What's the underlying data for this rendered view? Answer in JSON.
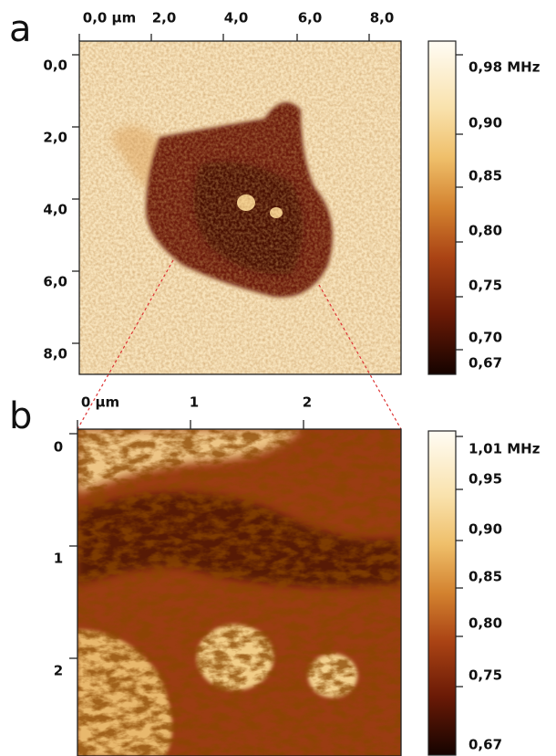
{
  "panel_a": {
    "label": "a",
    "x_ticks": [
      "0,0 µm",
      "2,0",
      "4,0",
      "6,0",
      "8,0"
    ],
    "y_ticks": [
      "0,0",
      "2,0",
      "4,0",
      "6,0",
      "8,0"
    ],
    "colorbar_ticks": [
      "0,98 MHz",
      "0,90",
      "0,85",
      "0,80",
      "0,75",
      "0,70",
      "0,67"
    ]
  },
  "panel_b": {
    "label": "b",
    "x_ticks": [
      "0 µm",
      "1",
      "2"
    ],
    "y_ticks": [
      "0",
      "1",
      "2"
    ],
    "colorbar_ticks": [
      "1,01 MHz",
      "0,95",
      "0,90",
      "0,85",
      "0,80",
      "0,75",
      "0,67"
    ]
  }
}
